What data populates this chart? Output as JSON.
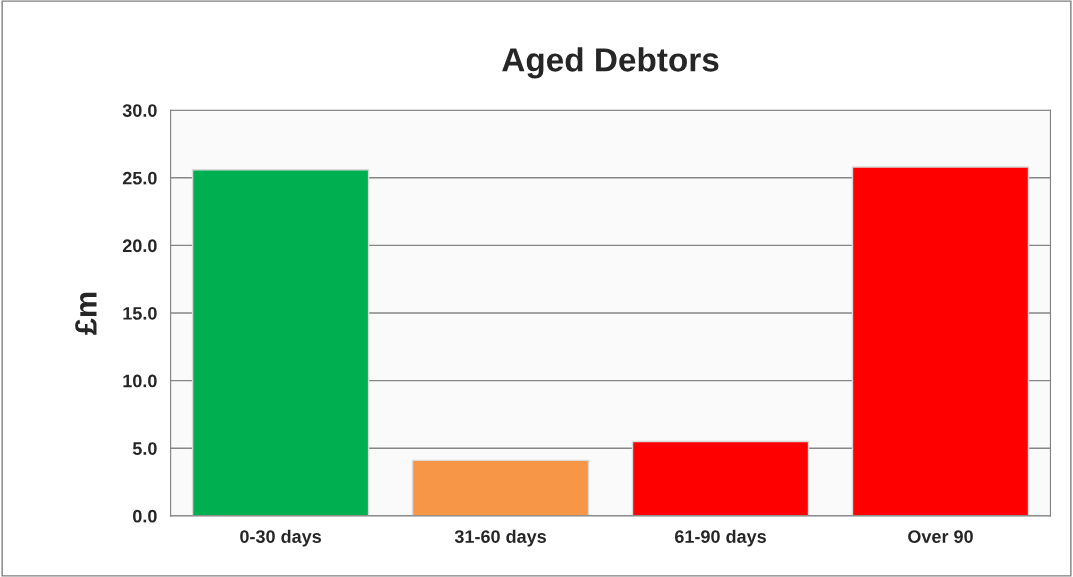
{
  "chart_data": {
    "type": "bar",
    "title": "Aged Debtors",
    "ylabel": "£m",
    "categories": [
      "0-30 days",
      "31-60 days",
      "61-90 days",
      "Over 90"
    ],
    "values": [
      25.6,
      4.1,
      5.5,
      25.8
    ],
    "colors": [
      "#00b050",
      "#f79646",
      "#ff0000",
      "#ff0000"
    ],
    "ylim": [
      0,
      30
    ],
    "yticks": [
      {
        "value": 0,
        "label": "0.0"
      },
      {
        "value": 5,
        "label": "5.0"
      },
      {
        "value": 10,
        "label": "10.0"
      },
      {
        "value": 15,
        "label": "15.0"
      },
      {
        "value": 20,
        "label": "20.0"
      },
      {
        "value": 25,
        "label": "25.0"
      },
      {
        "value": 30,
        "label": "30.0"
      }
    ],
    "grid": "y",
    "legend": false
  }
}
